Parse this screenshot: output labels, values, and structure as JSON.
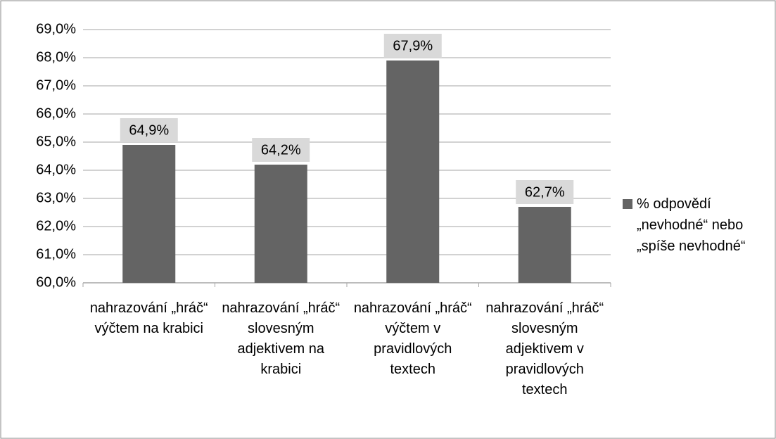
{
  "chart_data": {
    "type": "bar",
    "categories": [
      "nahrazování „hráč“ výčtem na krabici",
      "nahrazování „hráč“ slovesným adjektivem na krabici",
      "nahrazování „hráč“ výčtem v pravidlových textech",
      "nahrazování „hráč“ slovesným adjektivem v pravidlových textech"
    ],
    "series": [
      {
        "name": "% odpovědí „nevhodné“ nebo „spíše nevhodné“",
        "color": "#646464",
        "values": [
          64.9,
          64.2,
          67.9,
          62.7
        ],
        "value_labels": [
          "64,9%",
          "64,2%",
          "67,9%",
          "62,7%"
        ]
      }
    ],
    "ylim": [
      60,
      69
    ],
    "yticks": [
      {
        "value": 60,
        "label": "60,0%"
      },
      {
        "value": 61,
        "label": "61,0%"
      },
      {
        "value": 62,
        "label": "62,0%"
      },
      {
        "value": 63,
        "label": "63,0%"
      },
      {
        "value": 64,
        "label": "64,0%"
      },
      {
        "value": 65,
        "label": "65,0%"
      },
      {
        "value": 66,
        "label": "66,0%"
      },
      {
        "value": 67,
        "label": "67,0%"
      },
      {
        "value": 68,
        "label": "68,0%"
      },
      {
        "value": 69,
        "label": "69,0%"
      }
    ],
    "grid": true,
    "legend": "right"
  }
}
